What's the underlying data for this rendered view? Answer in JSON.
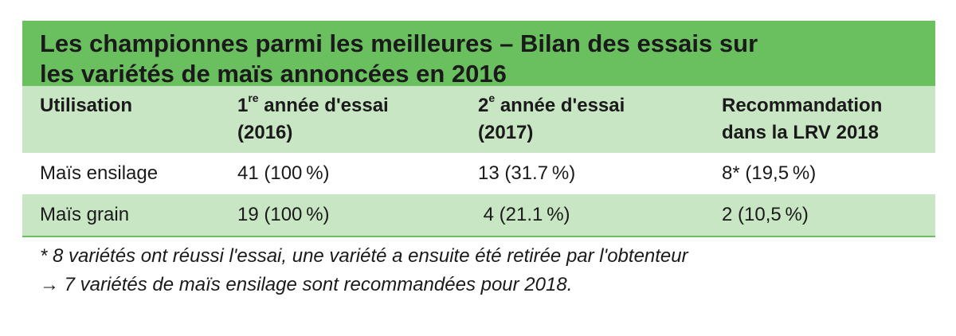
{
  "title": {
    "line1": "Les championnes parmi les meilleures – Bilan des essais sur",
    "line2": "les variétés de maïs annoncées en 2016"
  },
  "table": {
    "headers": {
      "col1": "Utilisation",
      "col2_num": "1",
      "col2_sup": "re",
      "col2_rest": " année d'essai",
      "col2_year": "(2016)",
      "col3_num": "2",
      "col3_sup": "e",
      "col3_rest": " année d'essai",
      "col3_year": "(2017)",
      "col4_line1": "Recommandation",
      "col4_line2": "dans la LRV 2018"
    },
    "rows": [
      {
        "utilisation": "Maïs ensilage",
        "year1": "41 (100 %)",
        "year2": "13 (31.7 %)",
        "recommandation": "8* (19,5 %)"
      },
      {
        "utilisation": "Maïs grain",
        "year1": "19 (100 %)",
        "year2": " 4 (21.1 %)",
        "recommandation": "2 (10,5 %)"
      }
    ]
  },
  "notes": {
    "footnote": "* 8 variétés ont réussi l'essai, une variété a ensuite été retirée par l'obtenteur",
    "arrow_symbol": "→",
    "conclusion": " 7 variétés de maïs ensilage sont recommandées pour 2018."
  },
  "colors": {
    "title_bar": "#6abf5e",
    "light_green": "#c8e6c3"
  }
}
